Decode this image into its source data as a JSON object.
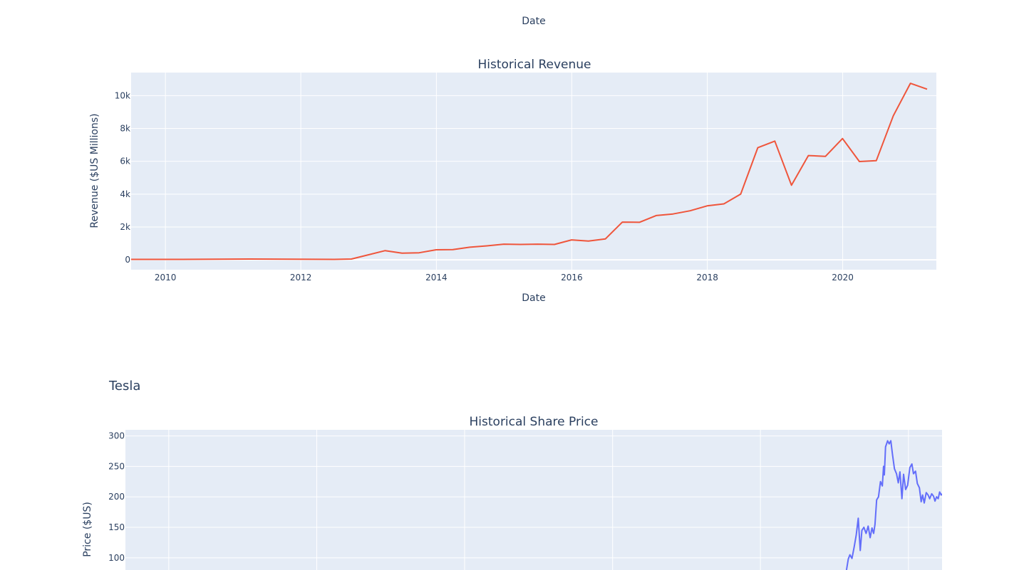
{
  "figure": {
    "title": "Tesla",
    "top_xlabel": "Date"
  },
  "chart_data": [
    {
      "type": "line",
      "title": "Historical Revenue",
      "xlabel": "Date",
      "ylabel": "Revenue ($US Millions)",
      "color": "#EF553B",
      "plot_bg": "#E5ECF6",
      "grid": true,
      "xlim": [
        "2009-06-30",
        "2021-05-20"
      ],
      "ylim": [
        -600,
        11400
      ],
      "x_ticks": [
        "2010",
        "2012",
        "2014",
        "2016",
        "2018",
        "2020"
      ],
      "y_ticks": [
        "0",
        "2k",
        "4k",
        "6k",
        "8k",
        "10k"
      ],
      "series": [
        {
          "x": [
            "2009-06-30",
            "2010-03-31",
            "2011-03-31",
            "2012-06-30",
            "2012-09-30",
            "2013-03-31",
            "2013-06-30",
            "2013-09-30",
            "2013-12-31",
            "2014-03-31",
            "2014-06-30",
            "2014-09-30",
            "2014-12-31",
            "2015-03-31",
            "2015-06-30",
            "2015-09-30",
            "2015-12-31",
            "2016-03-31",
            "2016-06-30",
            "2016-09-30",
            "2016-12-31",
            "2017-03-31",
            "2017-06-30",
            "2017-09-30",
            "2017-12-31",
            "2018-03-31",
            "2018-06-30",
            "2018-09-30",
            "2018-12-31",
            "2019-03-31",
            "2019-06-30",
            "2019-09-30",
            "2019-12-31",
            "2020-03-31",
            "2020-06-30",
            "2020-09-30",
            "2020-12-31",
            "2021-03-31"
          ],
          "y": [
            27,
            28,
            49,
            27,
            50,
            562,
            405,
            431,
            615,
            621,
            769,
            852,
            957,
            940,
            955,
            937,
            1214,
            1147,
            1270,
            2298,
            2285,
            2696,
            2790,
            2985,
            3288,
            3409,
            4002,
            6824,
            7226,
            4541,
            6350,
            6303,
            7384,
            5985,
            6036,
            8771,
            10744,
            10389
          ]
        }
      ]
    },
    {
      "type": "line",
      "title": "Historical Share Price",
      "xlabel": "",
      "ylabel": "Price ($US)",
      "color": "#636EFA",
      "plot_bg": "#E5ECF6",
      "grid": true,
      "xlim": [
        "2010-06-01",
        "2021-06-16"
      ],
      "ylim": [
        80,
        310
      ],
      "x_ticks": [],
      "y_ticks": [
        "100",
        "150",
        "200",
        "250",
        "300"
      ],
      "series": [
        {
          "x": [
            "2020-03-01",
            "2020-03-10",
            "2020-03-18",
            "2020-03-28",
            "2020-04-08",
            "2020-04-18",
            "2020-04-28",
            "2020-05-08",
            "2020-05-16",
            "2020-05-26",
            "2020-06-06",
            "2020-06-16",
            "2020-06-26",
            "2020-07-05",
            "2020-07-13",
            "2020-07-20",
            "2020-07-28",
            "2020-08-06",
            "2020-08-16",
            "2020-08-25",
            "2020-08-31",
            "2020-09-04",
            "2020-09-10",
            "2020-09-20",
            "2020-09-28",
            "2020-10-06",
            "2020-10-14",
            "2020-10-24",
            "2020-11-03",
            "2020-11-12",
            "2020-11-20",
            "2020-11-30",
            "2020-12-08",
            "2020-12-18",
            "2020-12-28",
            "2021-01-08",
            "2021-01-18",
            "2021-01-26",
            "2021-02-05",
            "2021-02-14",
            "2021-02-24",
            "2021-03-05",
            "2021-03-12",
            "2021-03-20",
            "2021-03-30",
            "2021-04-08",
            "2021-04-16",
            "2021-04-26",
            "2021-05-05",
            "2021-05-12",
            "2021-05-20",
            "2021-05-28",
            "2021-06-04",
            "2021-06-12",
            "2021-06-16"
          ],
          "y": [
            80,
            98,
            105,
            99,
            118,
            137,
            165,
            112,
            145,
            150,
            140,
            152,
            133,
            149,
            140,
            155,
            195,
            200,
            225,
            218,
            250,
            236,
            282,
            292,
            287,
            292,
            270,
            246,
            238,
            223,
            241,
            197,
            237,
            212,
            219,
            248,
            254,
            238,
            242,
            222,
            215,
            192,
            203,
            190,
            207,
            203,
            197,
            205,
            201,
            193,
            200,
            197,
            208,
            203,
            205
          ]
        }
      ]
    }
  ]
}
